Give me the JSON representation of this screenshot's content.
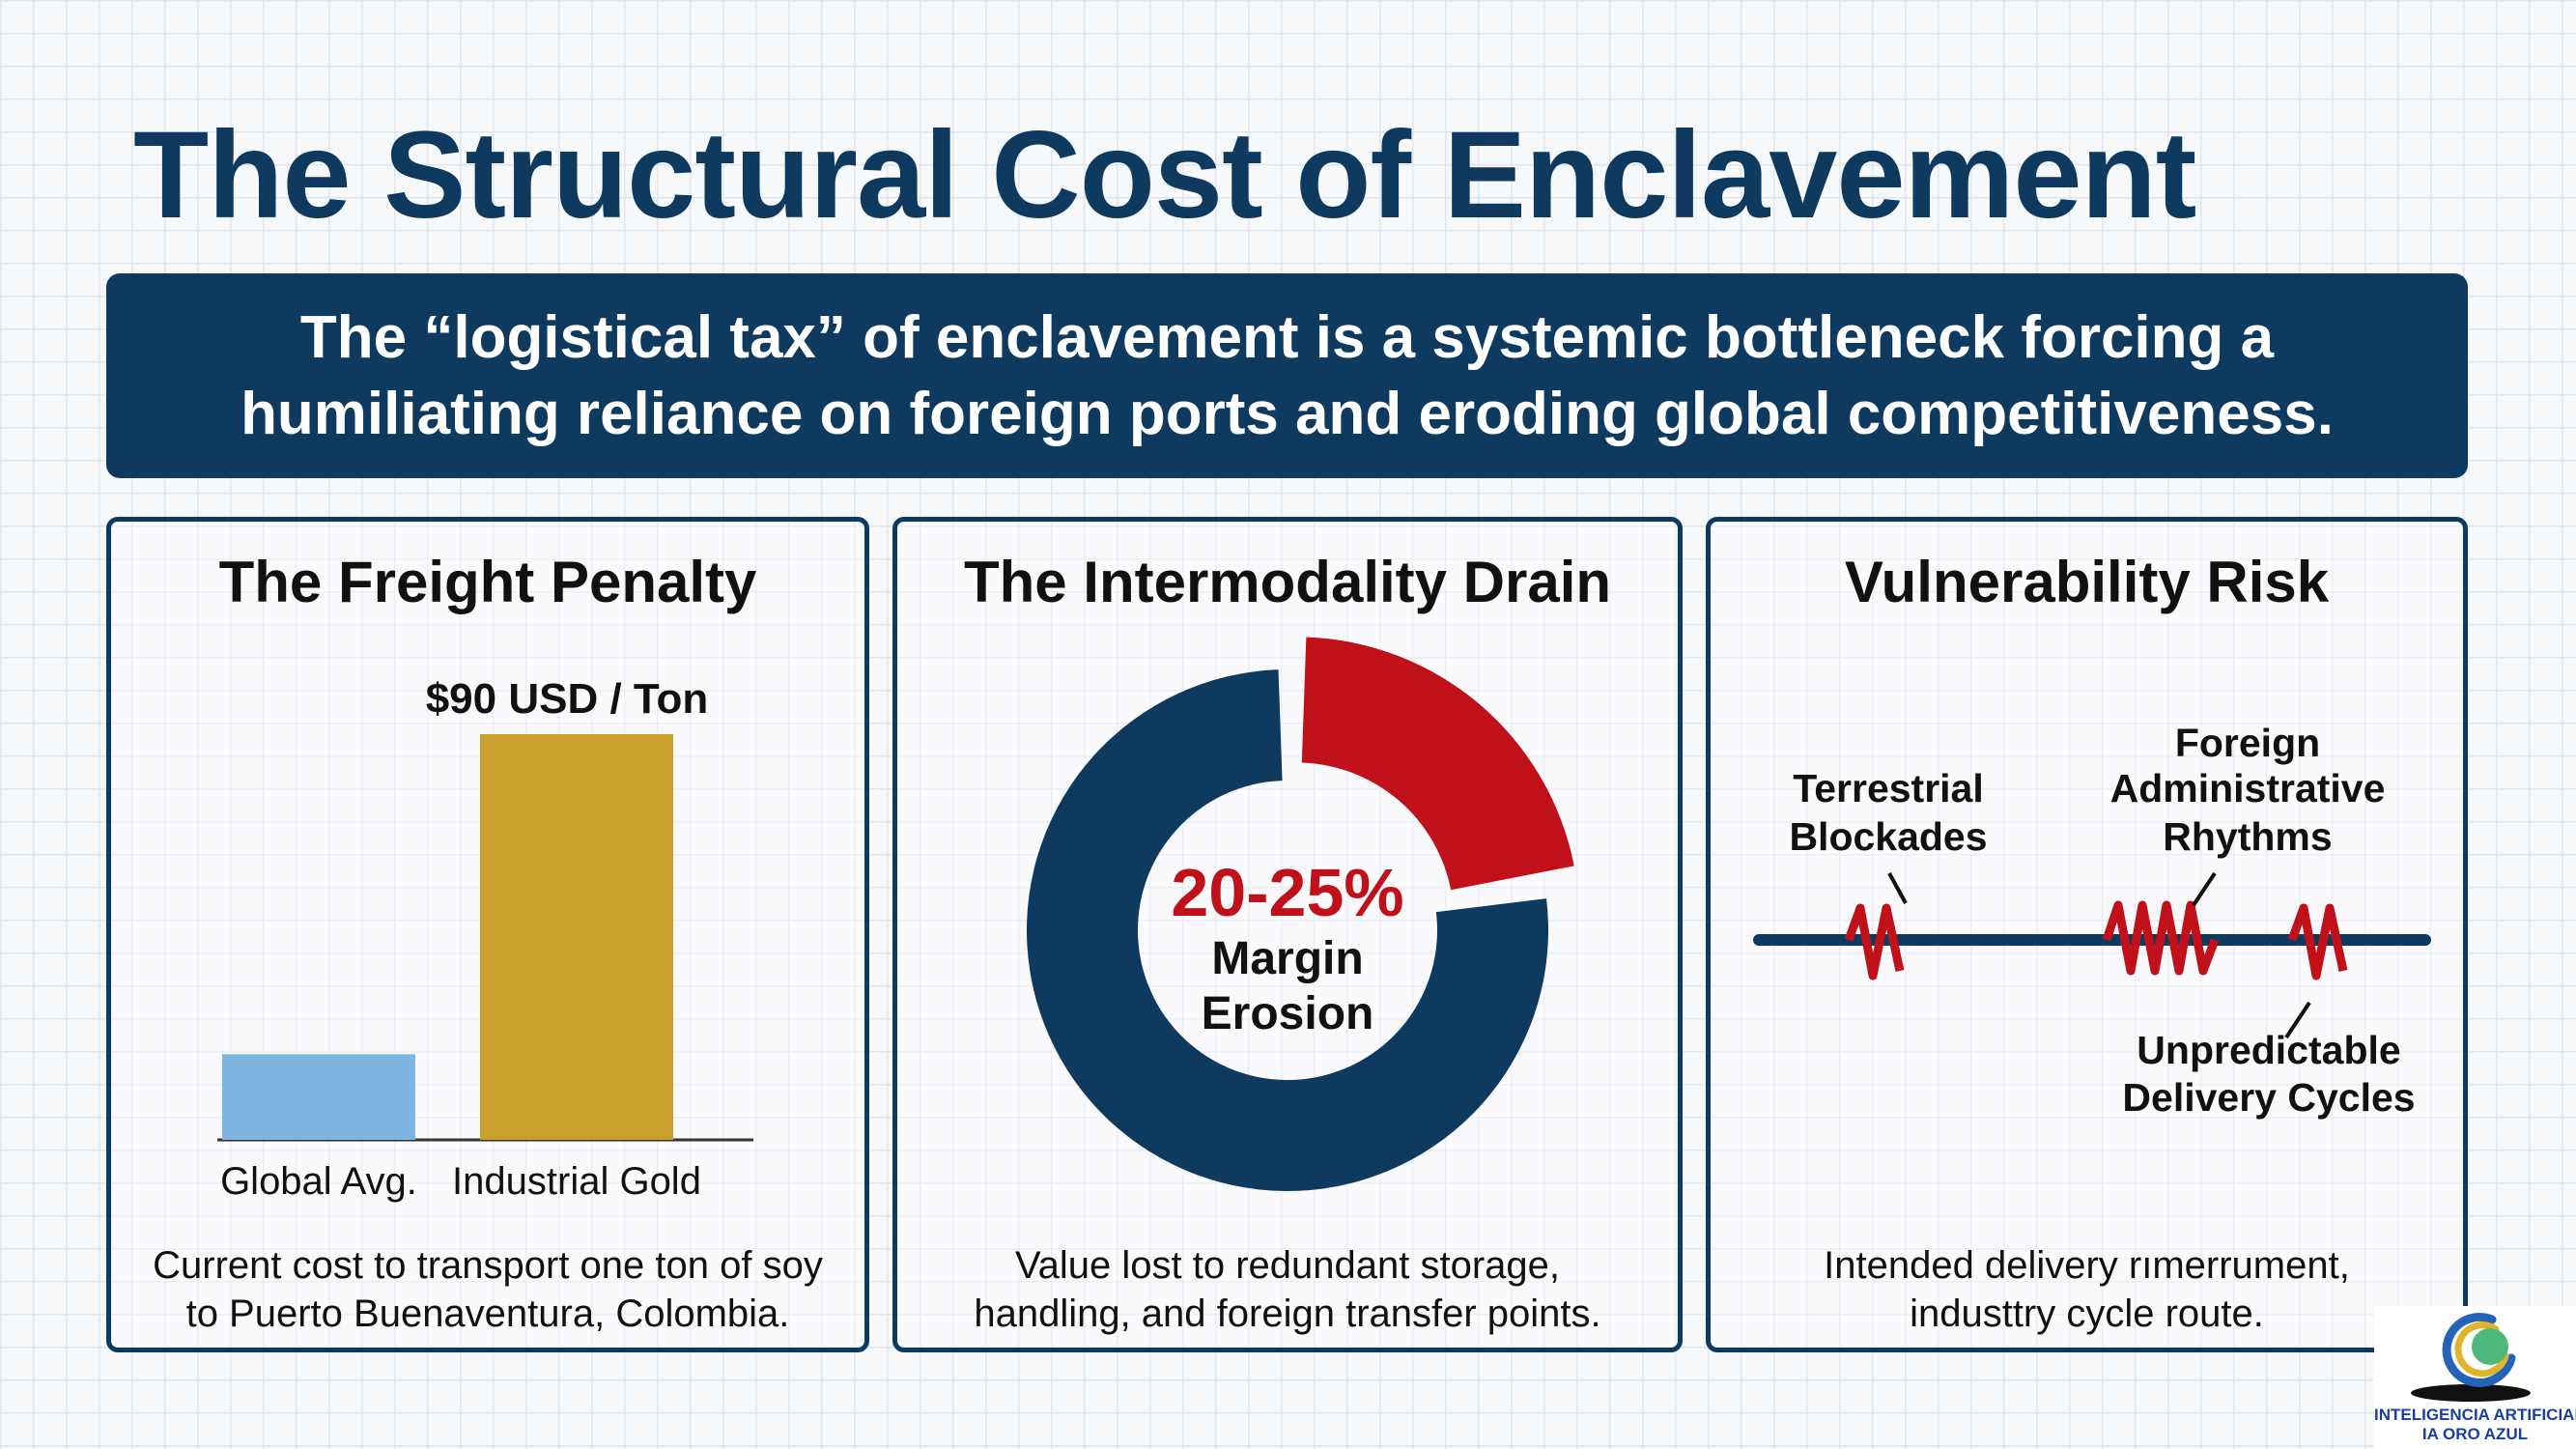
{
  "title": "The Structural Cost of Enclavement",
  "banner": "The “logistical tax” of enclavement is a systemic bottleneck forcing a humiliating reliance on foreign ports and eroding global competitiveness.",
  "panels": {
    "freight": {
      "title": "The Freight Penalty",
      "caption_line1": "Current cost to transport one ton of soy",
      "caption_line2": "to Puerto Buenaventura, Colombia."
    },
    "drain": {
      "title": "The Intermodality Drain",
      "caption_line1": "Value lost to redundant storage,",
      "caption_line2": "handling, and foreign transfer points."
    },
    "vulnerability": {
      "title": "Vulnerability Risk",
      "caption_line1": "Intended delivery rımerrument,",
      "caption_line2": "industtry cycle route."
    }
  },
  "chart_data": [
    {
      "type": "bar",
      "categories": [
        "Global Avg.",
        "Industrial Gold"
      ],
      "values": [
        19,
        90
      ],
      "data_labels": [
        "",
        "$90 USD / Ton"
      ],
      "colors": [
        "#7db4e0",
        "#c9a02c"
      ],
      "ylim": [
        0,
        90
      ]
    },
    {
      "type": "pie",
      "slices": [
        {
          "value": 22.5,
          "color": "#c0111b"
        },
        {
          "value": 77.5,
          "color": "#0e3a5f"
        }
      ],
      "center_value": "20-25%",
      "center_label_line1": "Margin",
      "center_label_line2": "Erosion"
    }
  ],
  "vulnerability_labels": {
    "terrestrial": [
      "Terrestrial",
      "Blockades"
    ],
    "foreign": [
      "Foreign",
      "Administrative",
      "Rhythms"
    ],
    "unpredictable": [
      "Unpredictable",
      "Delivery Cycles"
    ]
  },
  "colors": {
    "navy": "#0e3a5f",
    "red": "#c0111b",
    "gold": "#c9a02c",
    "light_blue": "#7db4e0"
  },
  "logo": {
    "line1": "INTELIGENCIA ARTIFICIAL",
    "line2": "IA ORO AZUL"
  }
}
